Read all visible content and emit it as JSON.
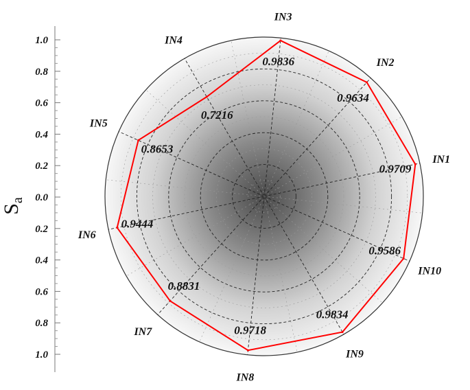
{
  "chart_data": {
    "type": "radar",
    "title": "",
    "axis_label": {
      "main": "S",
      "sub": "a"
    },
    "scale_ticks": [
      "1.0",
      "0.8",
      "0.6",
      "0.4",
      "0.2",
      "0.0",
      "0.2",
      "0.4",
      "0.6",
      "0.8",
      "1.0"
    ],
    "rlim": [
      0,
      1
    ],
    "categories": [
      "IN1",
      "IN2",
      "IN3",
      "IN4",
      "IN5",
      "IN6",
      "IN7",
      "IN8",
      "IN9",
      "IN10"
    ],
    "values": [
      0.9709,
      0.9634,
      0.9836,
      0.7216,
      0.8653,
      0.9444,
      0.8831,
      0.9718,
      0.9834,
      0.9586
    ],
    "value_labels": [
      "0.9709",
      "0.9634",
      "0.9836",
      "0.7216",
      "0.8653",
      "0.9444",
      "0.8831",
      "0.9718",
      "0.9834",
      "0.9586"
    ],
    "line_color": "#ff0000",
    "grid": true,
    "grid_rings": 5
  }
}
